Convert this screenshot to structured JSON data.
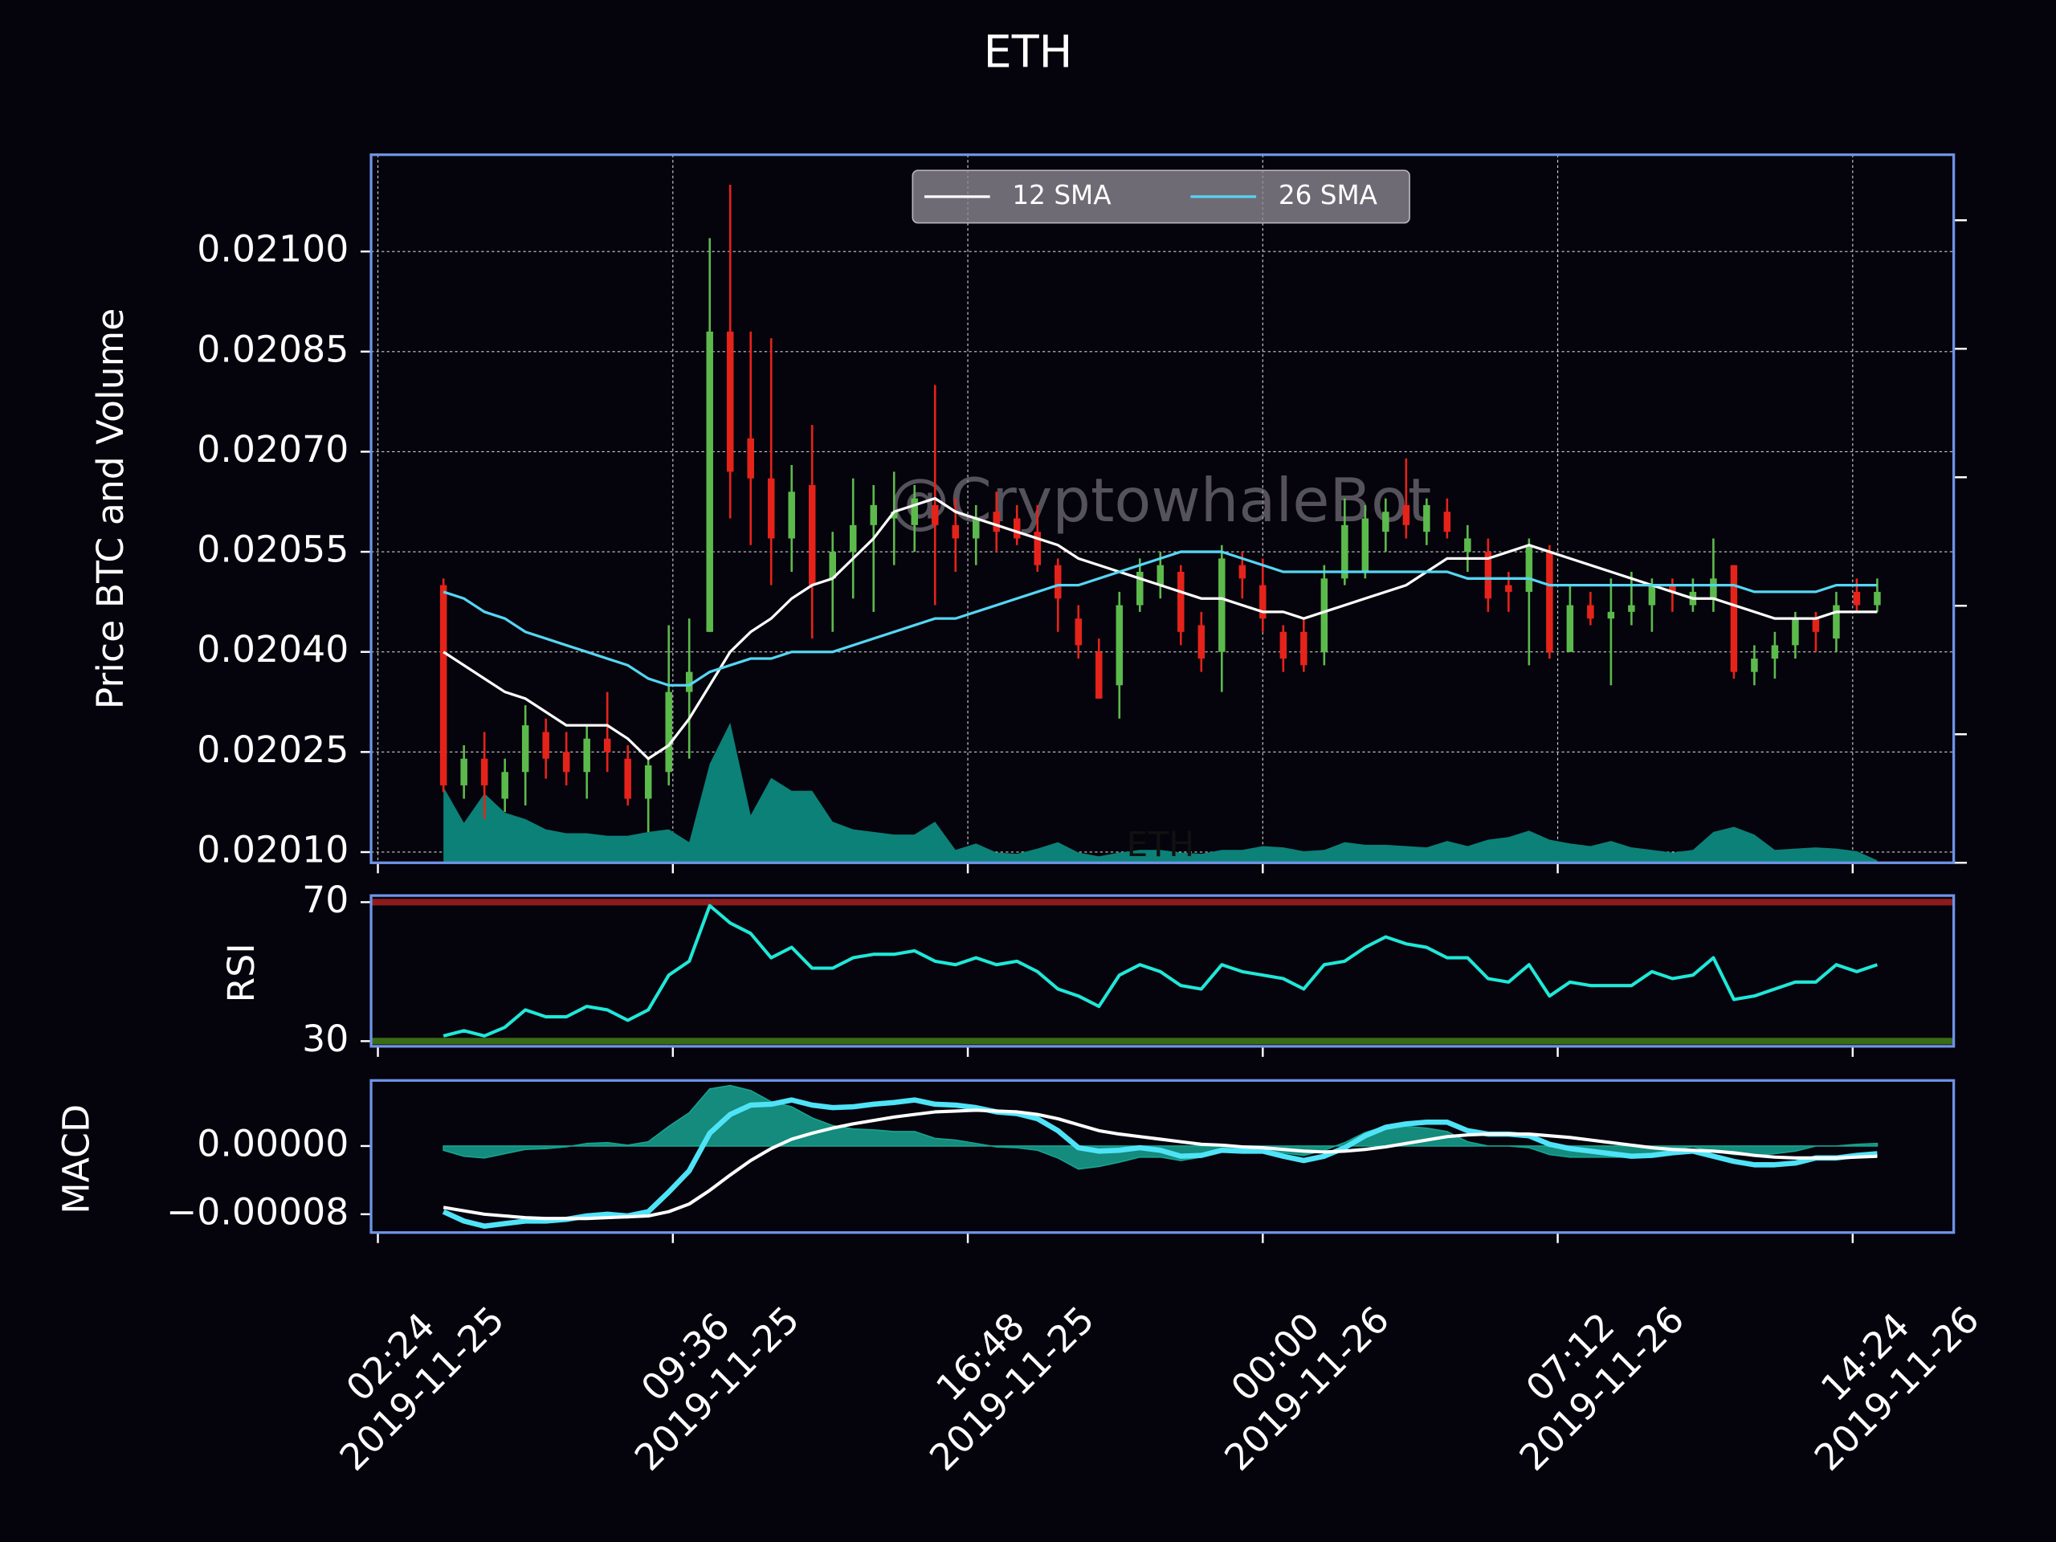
{
  "chart_data": [
    {
      "type": "candlestick",
      "title": "ETH",
      "y_label": "Price BTC and Volume",
      "watermark": "@CryptowhaleBot",
      "inner_label": "ETH",
      "x": [
        "2019-11-25 04:00",
        "2019-11-25 04:30",
        "2019-11-25 05:00",
        "2019-11-25 05:30",
        "2019-11-25 06:00",
        "2019-11-25 06:30",
        "2019-11-25 07:00",
        "2019-11-25 07:30",
        "2019-11-25 08:00",
        "2019-11-25 08:30",
        "2019-11-25 09:00",
        "2019-11-25 09:30",
        "2019-11-25 10:00",
        "2019-11-25 10:30",
        "2019-11-25 11:00",
        "2019-11-25 11:30",
        "2019-11-25 12:00",
        "2019-11-25 12:30",
        "2019-11-25 13:00",
        "2019-11-25 13:30",
        "2019-11-25 14:00",
        "2019-11-25 14:30",
        "2019-11-25 15:00",
        "2019-11-25 15:30",
        "2019-11-25 16:00",
        "2019-11-25 16:30",
        "2019-11-25 17:00",
        "2019-11-25 17:30",
        "2019-11-25 18:00",
        "2019-11-25 18:30",
        "2019-11-25 19:00",
        "2019-11-25 19:30",
        "2019-11-25 20:00",
        "2019-11-25 20:30",
        "2019-11-25 21:00",
        "2019-11-25 21:30",
        "2019-11-25 22:00",
        "2019-11-25 22:30",
        "2019-11-25 23:00",
        "2019-11-25 23:30",
        "2019-11-26 00:00",
        "2019-11-26 00:30",
        "2019-11-26 01:00",
        "2019-11-26 01:30",
        "2019-11-26 02:00",
        "2019-11-26 02:30",
        "2019-11-26 03:00",
        "2019-11-26 03:30",
        "2019-11-26 04:00",
        "2019-11-26 04:30",
        "2019-11-26 05:00",
        "2019-11-26 05:30",
        "2019-11-26 06:00",
        "2019-11-26 06:30",
        "2019-11-26 07:00",
        "2019-11-26 07:30",
        "2019-11-26 08:00",
        "2019-11-26 08:30",
        "2019-11-26 09:00",
        "2019-11-26 09:30",
        "2019-11-26 10:00",
        "2019-11-26 10:30",
        "2019-11-26 11:00",
        "2019-11-26 11:30",
        "2019-11-26 12:00",
        "2019-11-26 12:30",
        "2019-11-26 13:00",
        "2019-11-26 13:30",
        "2019-11-26 14:00",
        "2019-11-26 14:30",
        "2019-11-26 15:00"
      ],
      "xlim": [
        "2019-11-25 02:14",
        "2019-11-26 16:52"
      ],
      "xticks": [
        {
          "value": "2019-11-25 02:24",
          "time": "02:24",
          "date": "2019-11-25"
        },
        {
          "value": "2019-11-25 09:36",
          "time": "09:36",
          "date": "2019-11-25"
        },
        {
          "value": "2019-11-25 16:48",
          "time": "16:48",
          "date": "2019-11-25"
        },
        {
          "value": "2019-11-26 00:00",
          "time": "00:00",
          "date": "2019-11-26"
        },
        {
          "value": "2019-11-26 07:12",
          "time": "07:12",
          "date": "2019-11-26"
        },
        {
          "value": "2019-11-26 14:24",
          "time": "14:24",
          "date": "2019-11-26"
        }
      ],
      "open": [
        0.0205,
        0.0202,
        0.02024,
        0.02018,
        0.02022,
        0.02028,
        0.02025,
        0.02022,
        0.02027,
        0.02024,
        0.02018,
        0.02022,
        0.02034,
        0.02043,
        0.02088,
        0.02072,
        0.02066,
        0.02057,
        0.02065,
        0.02051,
        0.02055,
        0.02059,
        0.0206,
        0.02059,
        0.02062,
        0.02059,
        0.02057,
        0.02061,
        0.0206,
        0.02058,
        0.02053,
        0.02045,
        0.0204,
        0.02035,
        0.02047,
        0.0205,
        0.02052,
        0.02044,
        0.0204,
        0.02053,
        0.0205,
        0.02043,
        0.02043,
        0.0204,
        0.02051,
        0.02052,
        0.02058,
        0.02062,
        0.02058,
        0.02061,
        0.02055,
        0.02055,
        0.0205,
        0.02049,
        0.02055,
        0.0204,
        0.02047,
        0.02045,
        0.02046,
        0.02047,
        0.0205,
        0.02047,
        0.02048,
        0.02053,
        0.02037,
        0.02039,
        0.02041,
        0.02045,
        0.02042,
        0.02049,
        0.02047
      ],
      "high": [
        0.02051,
        0.02026,
        0.02028,
        0.02024,
        0.02032,
        0.0203,
        0.02028,
        0.02029,
        0.02034,
        0.02026,
        0.02024,
        0.02044,
        0.02045,
        0.02102,
        0.0211,
        0.02088,
        0.02087,
        0.02068,
        0.02074,
        0.02058,
        0.02066,
        0.02065,
        0.02067,
        0.02065,
        0.0208,
        0.02063,
        0.02062,
        0.02064,
        0.02062,
        0.02062,
        0.02054,
        0.02047,
        0.02042,
        0.02049,
        0.02054,
        0.02055,
        0.02053,
        0.02046,
        0.02056,
        0.02055,
        0.02054,
        0.02044,
        0.02045,
        0.02053,
        0.02063,
        0.02062,
        0.02063,
        0.02069,
        0.02063,
        0.02063,
        0.02059,
        0.02057,
        0.02052,
        0.02057,
        0.02056,
        0.0205,
        0.02049,
        0.02051,
        0.02052,
        0.02051,
        0.02051,
        0.02051,
        0.02057,
        0.02053,
        0.02041,
        0.02043,
        0.02046,
        0.02046,
        0.02049,
        0.02051,
        0.02051
      ],
      "low": [
        0.02019,
        0.02018,
        0.02015,
        0.02016,
        0.02017,
        0.02021,
        0.0202,
        0.02018,
        0.02022,
        0.02017,
        0.02013,
        0.0202,
        0.02024,
        0.02043,
        0.0206,
        0.02056,
        0.0205,
        0.02052,
        0.02042,
        0.02043,
        0.02048,
        0.02046,
        0.02053,
        0.02055,
        0.02047,
        0.02052,
        0.02053,
        0.02055,
        0.02056,
        0.02052,
        0.02043,
        0.02039,
        0.02033,
        0.0203,
        0.02046,
        0.02048,
        0.02041,
        0.02037,
        0.02034,
        0.02048,
        0.02043,
        0.02037,
        0.02037,
        0.02038,
        0.0205,
        0.02051,
        0.02055,
        0.02057,
        0.02056,
        0.02057,
        0.02052,
        0.02046,
        0.02046,
        0.02038,
        0.02039,
        0.0204,
        0.02044,
        0.02035,
        0.02044,
        0.02043,
        0.02046,
        0.02046,
        0.02046,
        0.02036,
        0.02035,
        0.02036,
        0.02039,
        0.0204,
        0.0204,
        0.02046,
        0.02046
      ],
      "close": [
        0.0202,
        0.02024,
        0.0202,
        0.02022,
        0.02029,
        0.02024,
        0.02022,
        0.02027,
        0.02025,
        0.02018,
        0.02023,
        0.02034,
        0.02037,
        0.02088,
        0.02067,
        0.02066,
        0.02057,
        0.02064,
        0.0205,
        0.02055,
        0.02059,
        0.02062,
        0.02061,
        0.02063,
        0.02059,
        0.02057,
        0.0206,
        0.02058,
        0.02057,
        0.02053,
        0.02048,
        0.02041,
        0.02033,
        0.02047,
        0.02052,
        0.02053,
        0.02043,
        0.02039,
        0.02054,
        0.02051,
        0.02045,
        0.02039,
        0.02038,
        0.02051,
        0.02059,
        0.0206,
        0.02061,
        0.02059,
        0.02062,
        0.02058,
        0.02057,
        0.02048,
        0.02049,
        0.02056,
        0.0204,
        0.02047,
        0.02045,
        0.02046,
        0.02047,
        0.0205,
        0.02049,
        0.02049,
        0.02051,
        0.02037,
        0.02039,
        0.02041,
        0.02045,
        0.02043,
        0.02047,
        0.02047,
        0.02049
      ],
      "up_color": "#5cba4c",
      "down_color": "#e5231b",
      "ylim": [
        0.020084,
        0.021145
      ],
      "yticks": [
        {
          "value": 0.0201,
          "label": "0.02010"
        },
        {
          "value": 0.02025,
          "label": "0.02025"
        },
        {
          "value": 0.0204,
          "label": "0.02040"
        },
        {
          "value": 0.02055,
          "label": "0.02055"
        },
        {
          "value": 0.0207,
          "label": "0.02070"
        },
        {
          "value": 0.02085,
          "label": "0.02085"
        },
        {
          "value": 0.021,
          "label": "0.02100"
        }
      ],
      "series": [
        {
          "name": "12 SMA",
          "color": "#ffffff",
          "values": [
            0.0204,
            0.02038,
            0.02036,
            0.02034,
            0.02033,
            0.02031,
            0.02029,
            0.02029,
            0.02029,
            0.02027,
            0.02024,
            0.02026,
            0.0203,
            0.02035,
            0.0204,
            0.02043,
            0.02045,
            0.02048,
            0.0205,
            0.02051,
            0.02054,
            0.02057,
            0.02061,
            0.02062,
            0.02063,
            0.02061,
            0.0206,
            0.02059,
            0.02058,
            0.02057,
            0.02056,
            0.02054,
            0.02053,
            0.02052,
            0.02051,
            0.0205,
            0.02049,
            0.02048,
            0.02048,
            0.02047,
            0.02046,
            0.02046,
            0.02045,
            0.02046,
            0.02047,
            0.02048,
            0.02049,
            0.0205,
            0.02052,
            0.02054,
            0.02054,
            0.02054,
            0.02055,
            0.02056,
            0.02055,
            0.02054,
            0.02053,
            0.02052,
            0.02051,
            0.0205,
            0.02049,
            0.02048,
            0.02048,
            0.02047,
            0.02046,
            0.02045,
            0.02045,
            0.02045,
            0.02046,
            0.02046,
            0.02046
          ]
        },
        {
          "name": "26 SMA",
          "color": "#55d6f2",
          "values": [
            0.02049,
            0.02048,
            0.02046,
            0.02045,
            0.02043,
            0.02042,
            0.02041,
            0.0204,
            0.02039,
            0.02038,
            0.02036,
            0.02035,
            0.02035,
            0.02037,
            0.02038,
            0.02039,
            0.02039,
            0.0204,
            0.0204,
            0.0204,
            0.02041,
            0.02042,
            0.02043,
            0.02044,
            0.02045,
            0.02045,
            0.02046,
            0.02047,
            0.02048,
            0.02049,
            0.0205,
            0.0205,
            0.02051,
            0.02052,
            0.02053,
            0.02054,
            0.02055,
            0.02055,
            0.02055,
            0.02054,
            0.02053,
            0.02052,
            0.02052,
            0.02052,
            0.02052,
            0.02052,
            0.02052,
            0.02052,
            0.02052,
            0.02052,
            0.02051,
            0.02051,
            0.02051,
            0.02051,
            0.0205,
            0.0205,
            0.0205,
            0.0205,
            0.0205,
            0.0205,
            0.0205,
            0.0205,
            0.0205,
            0.0205,
            0.02049,
            0.02049,
            0.02049,
            0.02049,
            0.0205,
            0.0205,
            0.0205
          ]
        }
      ],
      "volume": [
        59,
        31,
        54,
        39,
        34,
        26,
        23,
        23,
        21,
        21,
        24,
        26,
        16,
        77,
        109,
        37,
        66,
        56,
        56,
        32,
        26,
        24,
        22,
        22,
        32,
        10,
        15,
        8,
        7,
        11,
        16,
        8,
        5,
        8,
        10,
        10,
        8,
        7,
        10,
        10,
        13,
        12,
        9,
        10,
        16,
        14,
        14,
        13,
        12,
        17,
        13,
        18,
        20,
        25,
        18,
        15,
        13,
        17,
        12,
        10,
        8,
        10,
        24,
        28,
        22,
        10,
        11,
        12,
        11,
        9,
        2
      ],
      "volume_color": "#0c8178",
      "y2lim": [
        0,
        551
      ],
      "y2ticks": [
        0,
        100,
        200,
        300,
        400,
        500
      ],
      "legend": "upper center",
      "grid": true
    },
    {
      "type": "line",
      "y_label": "RSI",
      "series": [
        {
          "color": "#1fe8d8",
          "values": [
            31.5,
            33,
            31.5,
            34,
            39,
            37,
            37,
            40,
            39,
            36,
            39,
            49,
            53,
            69,
            64,
            61,
            54,
            57,
            51,
            51,
            54,
            55,
            55,
            56,
            53,
            52,
            54,
            52,
            53,
            50,
            45,
            43,
            40,
            49,
            52,
            50,
            46,
            45,
            52,
            50,
            49,
            48,
            45,
            52,
            53,
            57,
            60,
            58,
            57,
            54,
            54,
            48,
            47,
            52,
            43,
            47,
            46,
            46,
            46,
            50,
            48,
            49,
            54,
            42,
            43,
            45,
            47,
            47,
            52,
            50,
            52
          ]
        }
      ],
      "ylim": [
        28.5,
        71.9
      ],
      "yticks": [
        30,
        70
      ],
      "reference_lines": [
        {
          "value": 70,
          "color": "#8e1b1b"
        },
        {
          "value": 30,
          "color": "#3a6b16"
        }
      ]
    },
    {
      "type": "line",
      "y_label": "MACD",
      "series": [
        {
          "color": "#4fe3f7",
          "values": [
            -7.7e-05,
            -8.8e-05,
            -9.4e-05,
            -9.1e-05,
            -8.8e-05,
            -8.8e-05,
            -8.6e-05,
            -8.2e-05,
            -8e-05,
            -8.2e-05,
            -7.7e-05,
            -5.4e-05,
            -2.9e-05,
            1.5e-05,
            3.7e-05,
            4.8e-05,
            4.9e-05,
            5.4e-05,
            4.8e-05,
            4.5e-05,
            4.6e-05,
            4.9e-05,
            5.1e-05,
            5.4e-05,
            4.9e-05,
            4.8e-05,
            4.5e-05,
            4e-05,
            3.8e-05,
            3.2e-05,
            1.8e-05,
            -2e-06,
            -6e-06,
            -5e-06,
            -2e-06,
            -5e-06,
            -1.2e-05,
            -1.1e-05,
            -5e-06,
            -6e-06,
            -6e-06,
            -1.2e-05,
            -1.7e-05,
            -1.2e-05,
            -2e-06,
            1.2e-05,
            2.2e-05,
            2.6e-05,
            2.8e-05,
            2.8e-05,
            1.8e-05,
            1.4e-05,
            1.4e-05,
            1.2e-05,
            2e-06,
            -3e-06,
            -6e-06,
            -9e-06,
            -1.2e-05,
            -1.1e-05,
            -8e-06,
            -6e-06,
            -1.2e-05,
            -1.8e-05,
            -2.2e-05,
            -2.2e-05,
            -2e-05,
            -1.4e-05,
            -1.4e-05,
            -1.1e-05,
            -9e-06
          ]
        },
        {
          "color": "#ffffff",
          "values": [
            -7.2e-05,
            -7.6e-05,
            -8e-05,
            -8.2e-05,
            -8.4e-05,
            -8.5e-05,
            -8.5e-05,
            -8.5e-05,
            -8.4e-05,
            -8.3e-05,
            -8.2e-05,
            -7.7e-05,
            -6.8e-05,
            -5.2e-05,
            -3.4e-05,
            -1.7e-05,
            -3e-06,
            8e-06,
            1.5e-05,
            2.1e-05,
            2.6e-05,
            3e-05,
            3.4e-05,
            3.7e-05,
            4e-05,
            4.1e-05,
            4.2e-05,
            4.1e-05,
            4e-05,
            3.7e-05,
            3.2e-05,
            2.5e-05,
            1.8e-05,
            1.4e-05,
            1.1e-05,
            8e-06,
            5e-06,
            2e-06,
            1e-06,
            -1e-06,
            -2e-06,
            -4e-06,
            -6e-06,
            -7e-06,
            -6e-06,
            -4e-06,
            -1e-06,
            3e-06,
            7e-06,
            1.1e-05,
            1.3e-05,
            1.4e-05,
            1.4e-05,
            1.4e-05,
            1.2e-05,
            1e-05,
            7e-06,
            4e-06,
            1e-06,
            -2e-06,
            -4e-06,
            -5e-06,
            -6e-06,
            -8e-06,
            -1.1e-05,
            -1.3e-05,
            -1.4e-05,
            -1.4e-05,
            -1.4e-05,
            -1.3e-05,
            -1.2e-05
          ]
        }
      ],
      "histogram": {
        "color": "#17a390",
        "values": [
          -5e-06,
          -1.2e-05,
          -1.4e-05,
          -9e-06,
          -4e-06,
          -3e-06,
          -1e-06,
          3e-06,
          4e-06,
          1e-06,
          5e-06,
          2.3e-05,
          3.9e-05,
          6.7e-05,
          7.1e-05,
          6.5e-05,
          5.2e-05,
          4.6e-05,
          3.3e-05,
          2.4e-05,
          2e-05,
          1.9e-05,
          1.7e-05,
          1.7e-05,
          9e-06,
          7e-06,
          3e-06,
          -1e-06,
          -2e-06,
          -5e-06,
          -1.4e-05,
          -2.7e-05,
          -2.4e-05,
          -1.9e-05,
          -1.3e-05,
          -1.3e-05,
          -1.7e-05,
          -1.3e-05,
          -6e-06,
          -5e-06,
          -4e-06,
          -8e-06,
          -1.1e-05,
          -5e-06,
          4e-06,
          1.6e-05,
          2.3e-05,
          2.3e-05,
          2.1e-05,
          1.7e-05,
          5e-06,
          0,
          0,
          -2e-06,
          -1e-05,
          -1.3e-05,
          -1.3e-05,
          -1.3e-05,
          -1.3e-05,
          -9e-06,
          -4e-06,
          -1e-06,
          -6e-06,
          -1e-05,
          -1.1e-05,
          -9e-06,
          -6e-06,
          0,
          0,
          2e-06,
          3e-06
        ]
      },
      "ylim": [
        -0.0001015,
        7.69e-05
      ],
      "yticks": [
        {
          "value": -8e-05,
          "label": "−0.00008"
        },
        {
          "value": 0,
          "label": "0.00000"
        }
      ]
    }
  ]
}
